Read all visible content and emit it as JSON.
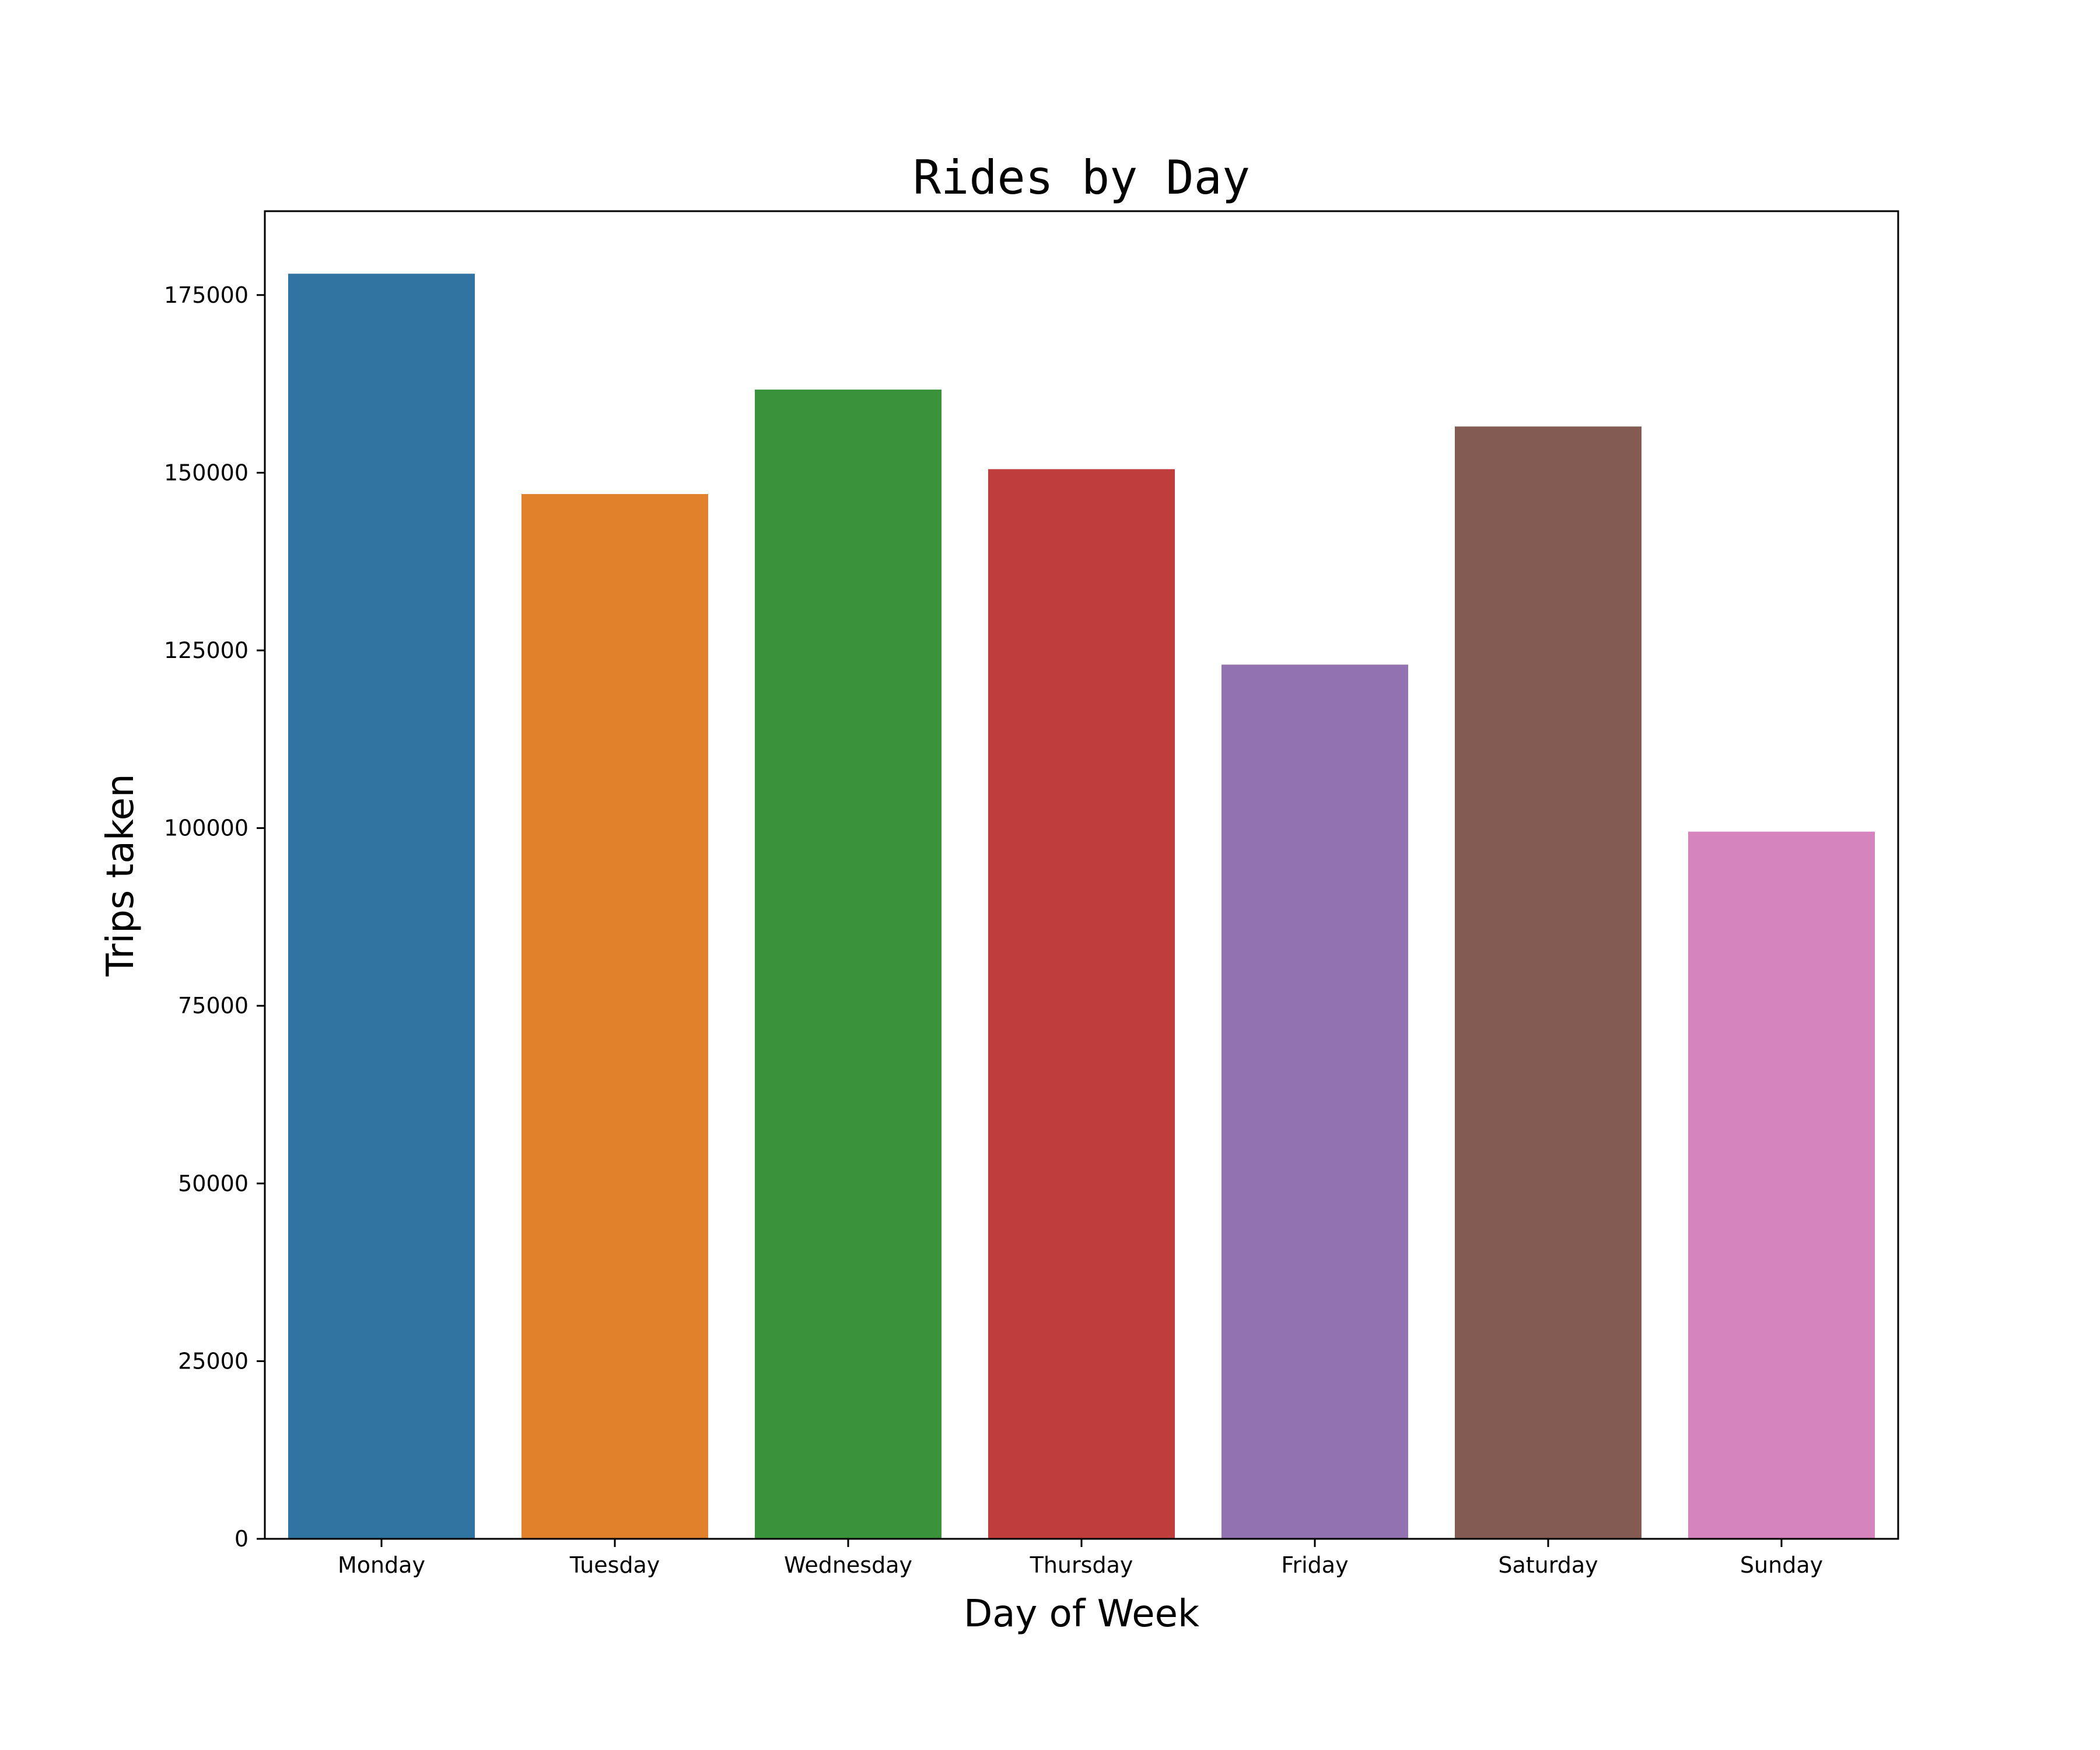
{
  "chart_data": {
    "type": "bar",
    "title": "Rides by Day",
    "xlabel": "Day of Week",
    "ylabel": "Trips taken",
    "categories": [
      "Monday",
      "Tuesday",
      "Wednesday",
      "Thursday",
      "Friday",
      "Saturday",
      "Sunday"
    ],
    "values": [
      178000,
      147000,
      161700,
      150500,
      123000,
      156500,
      99500
    ],
    "colors": [
      "#3274a1",
      "#e1812c",
      "#3a923a",
      "#c03d3e",
      "#9372b2",
      "#845b53",
      "#d684bd"
    ],
    "ylim": [
      0,
      186800
    ],
    "yticks": [
      0,
      25000,
      50000,
      75000,
      100000,
      125000,
      150000,
      175000
    ],
    "ytick_labels": [
      "0",
      "25000",
      "50000",
      "75000",
      "100000",
      "125000",
      "150000",
      "175000"
    ],
    "grid": false,
    "legend": "none"
  }
}
